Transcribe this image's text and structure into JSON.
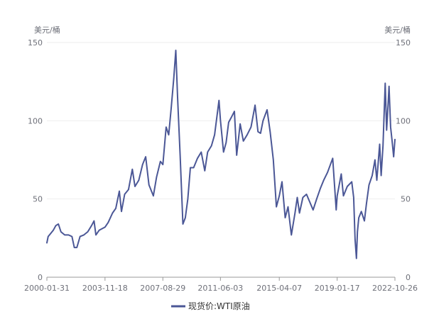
{
  "chart_data": {
    "type": "line",
    "y_unit_left": "美元/桶",
    "y_unit_right": "美元/桶",
    "ylim": [
      0,
      150
    ],
    "yticks": [
      0,
      50,
      100,
      150
    ],
    "xlim": [
      "2000-01-31",
      "2022-10-26"
    ],
    "xticks": [
      "2000-01-31",
      "2003-11-18",
      "2007-08-29",
      "2011-06-03",
      "2015-04-07",
      "2019-01-17",
      "2022-10-26"
    ],
    "grid": true,
    "legend_position": "bottom-center",
    "colors": {
      "series": "#4b5796",
      "grid": "#eeeeee",
      "axis": "#999999"
    },
    "series": [
      {
        "name": "现货价:WTI原油",
        "points": [
          [
            "2000-01-31",
            22
          ],
          [
            "2000-03-01",
            26
          ],
          [
            "2000-05-01",
            28
          ],
          [
            "2000-07-01",
            30
          ],
          [
            "2000-09-01",
            33
          ],
          [
            "2000-11-01",
            34
          ],
          [
            "2001-01-01",
            29
          ],
          [
            "2001-04-01",
            27
          ],
          [
            "2001-07-01",
            27
          ],
          [
            "2001-09-20",
            26
          ],
          [
            "2001-11-15",
            19
          ],
          [
            "2002-01-15",
            19
          ],
          [
            "2002-04-01",
            26
          ],
          [
            "2002-07-01",
            27
          ],
          [
            "2002-10-01",
            29
          ],
          [
            "2003-01-01",
            33
          ],
          [
            "2003-03-01",
            36
          ],
          [
            "2003-04-15",
            27
          ],
          [
            "2003-07-01",
            30
          ],
          [
            "2003-11-18",
            32
          ],
          [
            "2004-02-01",
            35
          ],
          [
            "2004-05-15",
            41
          ],
          [
            "2004-08-01",
            44
          ],
          [
            "2004-10-25",
            55
          ],
          [
            "2004-12-15",
            42
          ],
          [
            "2005-03-01",
            53
          ],
          [
            "2005-06-01",
            56
          ],
          [
            "2005-08-30",
            69
          ],
          [
            "2005-11-01",
            58
          ],
          [
            "2006-02-01",
            62
          ],
          [
            "2006-05-01",
            72
          ],
          [
            "2006-07-15",
            77
          ],
          [
            "2006-10-01",
            59
          ],
          [
            "2007-01-15",
            52
          ],
          [
            "2007-04-01",
            64
          ],
          [
            "2007-07-01",
            74
          ],
          [
            "2007-08-29",
            72
          ],
          [
            "2007-11-15",
            96
          ],
          [
            "2008-01-15",
            91
          ],
          [
            "2008-03-15",
            108
          ],
          [
            "2008-05-15",
            127
          ],
          [
            "2008-07-03",
            145
          ],
          [
            "2008-08-15",
            115
          ],
          [
            "2008-10-15",
            78
          ],
          [
            "2008-12-20",
            34
          ],
          [
            "2009-02-15",
            38
          ],
          [
            "2009-04-15",
            50
          ],
          [
            "2009-06-15",
            70
          ],
          [
            "2009-09-01",
            70
          ],
          [
            "2009-12-01",
            76
          ],
          [
            "2010-03-01",
            80
          ],
          [
            "2010-05-25",
            68
          ],
          [
            "2010-08-01",
            80
          ],
          [
            "2010-11-01",
            84
          ],
          [
            "2011-01-15",
            91
          ],
          [
            "2011-04-29",
            113
          ],
          [
            "2011-06-03",
            100
          ],
          [
            "2011-08-15",
            80
          ],
          [
            "2011-10-15",
            86
          ],
          [
            "2011-12-15",
            99
          ],
          [
            "2012-02-15",
            102
          ],
          [
            "2012-05-01",
            106
          ],
          [
            "2012-06-25",
            78
          ],
          [
            "2012-09-15",
            98
          ],
          [
            "2012-12-01",
            87
          ],
          [
            "2013-03-01",
            91
          ],
          [
            "2013-06-01",
            96
          ],
          [
            "2013-09-06",
            110
          ],
          [
            "2013-11-15",
            93
          ],
          [
            "2014-01-15",
            92
          ],
          [
            "2014-03-15",
            100
          ],
          [
            "2014-06-20",
            107
          ],
          [
            "2014-09-01",
            93
          ],
          [
            "2014-11-15",
            75
          ],
          [
            "2015-01-28",
            45
          ],
          [
            "2015-04-07",
            52
          ],
          [
            "2015-06-10",
            61
          ],
          [
            "2015-08-25",
            38
          ],
          [
            "2015-11-01",
            45
          ],
          [
            "2016-01-20",
            27
          ],
          [
            "2016-04-15",
            41
          ],
          [
            "2016-06-08",
            51
          ],
          [
            "2016-08-01",
            41
          ],
          [
            "2016-10-20",
            51
          ],
          [
            "2017-01-15",
            53
          ],
          [
            "2017-06-21",
            43
          ],
          [
            "2017-09-15",
            50
          ],
          [
            "2017-12-15",
            57
          ],
          [
            "2018-03-01",
            62
          ],
          [
            "2018-06-01",
            67
          ],
          [
            "2018-10-03",
            76
          ],
          [
            "2018-12-24",
            43
          ],
          [
            "2019-01-17",
            52
          ],
          [
            "2019-04-23",
            66
          ],
          [
            "2019-06-15",
            52
          ],
          [
            "2019-09-15",
            58
          ],
          [
            "2019-12-31",
            61
          ],
          [
            "2020-02-15",
            51
          ],
          [
            "2020-03-20",
            24
          ],
          [
            "2020-04-20",
            12
          ],
          [
            "2020-05-15",
            29
          ],
          [
            "2020-06-15",
            38
          ],
          [
            "2020-08-15",
            42
          ],
          [
            "2020-10-28",
            36
          ],
          [
            "2020-12-15",
            47
          ],
          [
            "2021-02-15",
            59
          ],
          [
            "2021-05-01",
            65
          ],
          [
            "2021-07-06",
            75
          ],
          [
            "2021-08-20",
            62
          ],
          [
            "2021-10-26",
            85
          ],
          [
            "2021-12-01",
            65
          ],
          [
            "2022-01-15",
            84
          ],
          [
            "2022-03-08",
            124
          ],
          [
            "2022-04-11",
            94
          ],
          [
            "2022-05-15",
            110
          ],
          [
            "2022-06-08",
            122
          ],
          [
            "2022-07-15",
            96
          ],
          [
            "2022-08-15",
            88
          ],
          [
            "2022-09-26",
            77
          ],
          [
            "2022-10-26",
            88
          ]
        ]
      }
    ]
  }
}
